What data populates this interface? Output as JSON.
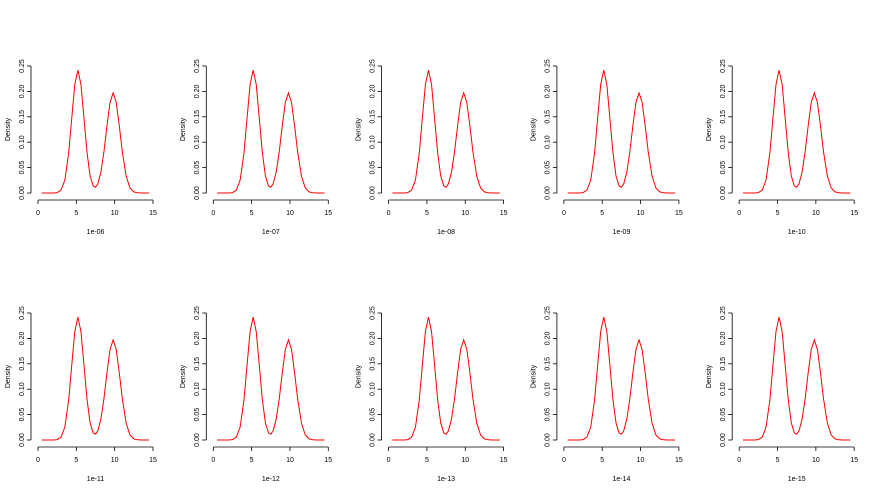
{
  "chart_data": [
    {
      "type": "line",
      "xlabel": "1e-06",
      "ylabel": "Density",
      "color": "#ff0000",
      "xlim": [
        0,
        15
      ],
      "ylim": [
        0,
        0.25
      ],
      "xticks": [
        0,
        5,
        10,
        15
      ],
      "yticks": [
        {
          "value": 0,
          "label": "0.00"
        },
        0.05,
        {
          "value": 0.1,
          "label": "0.10"
        },
        0.15,
        {
          "value": 0.2,
          "label": "0.20"
        },
        0.25
      ],
      "x": [
        0.5,
        1,
        1.5,
        2,
        2.5,
        3,
        3.5,
        4,
        4.4,
        4.8,
        5.2,
        5.6,
        6,
        6.4,
        6.8,
        7.2,
        7.5,
        7.8,
        8.2,
        8.6,
        9,
        9.4,
        9.8,
        10.2,
        10.6,
        11,
        11.5,
        12,
        12.5,
        13,
        13.5,
        14,
        14.5
      ],
      "values": [
        0,
        0,
        0,
        0.0001,
        0.0008,
        0.0055,
        0.0253,
        0.0786,
        0.1468,
        0.2136,
        0.242,
        0.2136,
        0.1468,
        0.0788,
        0.0335,
        0.0137,
        0.0114,
        0.0179,
        0.0408,
        0.081,
        0.1327,
        0.1785,
        0.197,
        0.1785,
        0.1327,
        0.081,
        0.0331,
        0.0099,
        0.0022,
        0.0004,
        0,
        0,
        0
      ]
    },
    {
      "type": "line",
      "xlabel": "1e-07",
      "ylabel": "Density",
      "color": "#ff0000",
      "xlim": [
        0,
        15
      ],
      "ylim": [
        0,
        0.25
      ],
      "xticks": [
        0,
        5,
        10,
        15
      ],
      "yticks": [
        {
          "value": 0,
          "label": "0.00"
        },
        0.05,
        {
          "value": 0.1,
          "label": "0.10"
        },
        0.15,
        {
          "value": 0.2,
          "label": "0.20"
        },
        0.25
      ],
      "x": [
        0.5,
        1,
        1.5,
        2,
        2.5,
        3,
        3.5,
        4,
        4.4,
        4.8,
        5.2,
        5.6,
        6,
        6.4,
        6.8,
        7.2,
        7.5,
        7.8,
        8.2,
        8.6,
        9,
        9.4,
        9.8,
        10.2,
        10.6,
        11,
        11.5,
        12,
        12.5,
        13,
        13.5,
        14,
        14.5
      ],
      "values": [
        0,
        0,
        0,
        0.0001,
        0.0008,
        0.0055,
        0.0253,
        0.0786,
        0.1468,
        0.2136,
        0.242,
        0.2136,
        0.1468,
        0.0788,
        0.0335,
        0.0137,
        0.0114,
        0.0179,
        0.0408,
        0.081,
        0.1327,
        0.1785,
        0.197,
        0.1785,
        0.1327,
        0.081,
        0.0331,
        0.0099,
        0.0022,
        0.0004,
        0,
        0,
        0
      ]
    },
    {
      "type": "line",
      "xlabel": "1e-08",
      "ylabel": "Density",
      "color": "#ff0000",
      "xlim": [
        0,
        15
      ],
      "ylim": [
        0,
        0.25
      ],
      "xticks": [
        0,
        5,
        10,
        15
      ],
      "yticks": [
        {
          "value": 0,
          "label": "0.00"
        },
        0.05,
        {
          "value": 0.1,
          "label": "0.10"
        },
        0.15,
        {
          "value": 0.2,
          "label": "0.20"
        },
        0.25
      ],
      "x": [
        0.5,
        1,
        1.5,
        2,
        2.5,
        3,
        3.5,
        4,
        4.4,
        4.8,
        5.2,
        5.6,
        6,
        6.4,
        6.8,
        7.2,
        7.5,
        7.8,
        8.2,
        8.6,
        9,
        9.4,
        9.8,
        10.2,
        10.6,
        11,
        11.5,
        12,
        12.5,
        13,
        13.5,
        14,
        14.5
      ],
      "values": [
        0,
        0,
        0,
        0.0001,
        0.0008,
        0.0055,
        0.0253,
        0.0786,
        0.1468,
        0.2136,
        0.242,
        0.2136,
        0.1468,
        0.0788,
        0.0335,
        0.0137,
        0.0114,
        0.0179,
        0.0408,
        0.081,
        0.1327,
        0.1785,
        0.197,
        0.1785,
        0.1327,
        0.081,
        0.0331,
        0.0099,
        0.0022,
        0.0004,
        0,
        0,
        0
      ]
    },
    {
      "type": "line",
      "xlabel": "1e-09",
      "ylabel": "Density",
      "color": "#ff0000",
      "xlim": [
        0,
        15
      ],
      "ylim": [
        0,
        0.25
      ],
      "xticks": [
        0,
        5,
        10,
        15
      ],
      "yticks": [
        {
          "value": 0,
          "label": "0.00"
        },
        0.05,
        {
          "value": 0.1,
          "label": "0.10"
        },
        0.15,
        {
          "value": 0.2,
          "label": "0.20"
        },
        0.25
      ],
      "x": [
        0.5,
        1,
        1.5,
        2,
        2.5,
        3,
        3.5,
        4,
        4.4,
        4.8,
        5.2,
        5.6,
        6,
        6.4,
        6.8,
        7.2,
        7.5,
        7.8,
        8.2,
        8.6,
        9,
        9.4,
        9.8,
        10.2,
        10.6,
        11,
        11.5,
        12,
        12.5,
        13,
        13.5,
        14,
        14.5
      ],
      "values": [
        0,
        0,
        0,
        0.0001,
        0.0008,
        0.0055,
        0.0253,
        0.0786,
        0.1468,
        0.2136,
        0.242,
        0.2136,
        0.1468,
        0.0788,
        0.0335,
        0.0137,
        0.0114,
        0.0179,
        0.0408,
        0.081,
        0.1327,
        0.1785,
        0.197,
        0.1785,
        0.1327,
        0.081,
        0.0331,
        0.0099,
        0.0022,
        0.0004,
        0,
        0,
        0
      ]
    },
    {
      "type": "line",
      "xlabel": "1e-10",
      "ylabel": "Density",
      "color": "#ff0000",
      "xlim": [
        0,
        15
      ],
      "ylim": [
        0,
        0.25
      ],
      "xticks": [
        0,
        5,
        10,
        15
      ],
      "yticks": [
        {
          "value": 0,
          "label": "0.00"
        },
        0.05,
        {
          "value": 0.1,
          "label": "0.10"
        },
        0.15,
        {
          "value": 0.2,
          "label": "0.20"
        },
        0.25
      ],
      "x": [
        0.5,
        1,
        1.5,
        2,
        2.5,
        3,
        3.5,
        4,
        4.4,
        4.8,
        5.2,
        5.6,
        6,
        6.4,
        6.8,
        7.2,
        7.5,
        7.8,
        8.2,
        8.6,
        9,
        9.4,
        9.8,
        10.2,
        10.6,
        11,
        11.5,
        12,
        12.5,
        13,
        13.5,
        14,
        14.5
      ],
      "values": [
        0,
        0,
        0,
        0.0001,
        0.0008,
        0.0055,
        0.0253,
        0.0786,
        0.1468,
        0.2136,
        0.242,
        0.2136,
        0.1468,
        0.0788,
        0.0335,
        0.0137,
        0.0114,
        0.0179,
        0.0408,
        0.081,
        0.1327,
        0.1785,
        0.197,
        0.1785,
        0.1327,
        0.081,
        0.0331,
        0.0099,
        0.0022,
        0.0004,
        0,
        0,
        0
      ]
    },
    {
      "type": "line",
      "xlabel": "1e-11",
      "ylabel": "Density",
      "color": "#ff0000",
      "xlim": [
        0,
        15
      ],
      "ylim": [
        0,
        0.25
      ],
      "xticks": [
        0,
        5,
        10,
        15
      ],
      "yticks": [
        {
          "value": 0,
          "label": "0.00"
        },
        0.05,
        {
          "value": 0.1,
          "label": "0.10"
        },
        0.15,
        {
          "value": 0.2,
          "label": "0.20"
        },
        0.25
      ],
      "x": [
        0.5,
        1,
        1.5,
        2,
        2.5,
        3,
        3.5,
        4,
        4.4,
        4.8,
        5.2,
        5.6,
        6,
        6.4,
        6.8,
        7.2,
        7.5,
        7.8,
        8.2,
        8.6,
        9,
        9.4,
        9.8,
        10.2,
        10.6,
        11,
        11.5,
        12,
        12.5,
        13,
        13.5,
        14,
        14.5
      ],
      "values": [
        0,
        0,
        0,
        0.0001,
        0.0008,
        0.0055,
        0.0253,
        0.0786,
        0.1468,
        0.2136,
        0.242,
        0.2136,
        0.1468,
        0.0788,
        0.0335,
        0.0137,
        0.0114,
        0.0179,
        0.0408,
        0.081,
        0.1327,
        0.1785,
        0.197,
        0.1785,
        0.1327,
        0.081,
        0.0331,
        0.0099,
        0.0022,
        0.0004,
        0,
        0,
        0
      ]
    },
    {
      "type": "line",
      "xlabel": "1e-12",
      "ylabel": "Density",
      "color": "#ff0000",
      "xlim": [
        0,
        15
      ],
      "ylim": [
        0,
        0.25
      ],
      "xticks": [
        0,
        5,
        10,
        15
      ],
      "yticks": [
        {
          "value": 0,
          "label": "0.00"
        },
        0.05,
        {
          "value": 0.1,
          "label": "0.10"
        },
        0.15,
        {
          "value": 0.2,
          "label": "0.20"
        },
        0.25
      ],
      "x": [
        0.5,
        1,
        1.5,
        2,
        2.5,
        3,
        3.5,
        4,
        4.4,
        4.8,
        5.2,
        5.6,
        6,
        6.4,
        6.8,
        7.2,
        7.5,
        7.8,
        8.2,
        8.6,
        9,
        9.4,
        9.8,
        10.2,
        10.6,
        11,
        11.5,
        12,
        12.5,
        13,
        13.5,
        14,
        14.5
      ],
      "values": [
        0,
        0,
        0,
        0.0001,
        0.0008,
        0.0055,
        0.0253,
        0.0786,
        0.1468,
        0.2136,
        0.242,
        0.2136,
        0.1468,
        0.0788,
        0.0335,
        0.0137,
        0.0114,
        0.0179,
        0.0408,
        0.081,
        0.1327,
        0.1785,
        0.197,
        0.1785,
        0.1327,
        0.081,
        0.0331,
        0.0099,
        0.0022,
        0.0004,
        0,
        0,
        0
      ]
    },
    {
      "type": "line",
      "xlabel": "1e-13",
      "ylabel": "Density",
      "color": "#ff0000",
      "xlim": [
        0,
        15
      ],
      "ylim": [
        0,
        0.25
      ],
      "xticks": [
        0,
        5,
        10,
        15
      ],
      "yticks": [
        {
          "value": 0,
          "label": "0.00"
        },
        0.05,
        {
          "value": 0.1,
          "label": "0.10"
        },
        0.15,
        {
          "value": 0.2,
          "label": "0.20"
        },
        0.25
      ],
      "x": [
        0.5,
        1,
        1.5,
        2,
        2.5,
        3,
        3.5,
        4,
        4.4,
        4.8,
        5.2,
        5.6,
        6,
        6.4,
        6.8,
        7.2,
        7.5,
        7.8,
        8.2,
        8.6,
        9,
        9.4,
        9.8,
        10.2,
        10.6,
        11,
        11.5,
        12,
        12.5,
        13,
        13.5,
        14,
        14.5
      ],
      "values": [
        0,
        0,
        0,
        0.0001,
        0.0008,
        0.0055,
        0.0253,
        0.0786,
        0.1468,
        0.2136,
        0.242,
        0.2136,
        0.1468,
        0.0788,
        0.0335,
        0.0137,
        0.0114,
        0.0179,
        0.0408,
        0.081,
        0.1327,
        0.1785,
        0.197,
        0.1785,
        0.1327,
        0.081,
        0.0331,
        0.0099,
        0.0022,
        0.0004,
        0,
        0,
        0
      ]
    },
    {
      "type": "line",
      "xlabel": "1e-14",
      "ylabel": "Density",
      "color": "#ff0000",
      "xlim": [
        0,
        15
      ],
      "ylim": [
        0,
        0.25
      ],
      "xticks": [
        0,
        5,
        10,
        15
      ],
      "yticks": [
        {
          "value": 0,
          "label": "0.00"
        },
        0.05,
        {
          "value": 0.1,
          "label": "0.10"
        },
        0.15,
        {
          "value": 0.2,
          "label": "0.20"
        },
        0.25
      ],
      "x": [
        0.5,
        1,
        1.5,
        2,
        2.5,
        3,
        3.5,
        4,
        4.4,
        4.8,
        5.2,
        5.6,
        6,
        6.4,
        6.8,
        7.2,
        7.5,
        7.8,
        8.2,
        8.6,
        9,
        9.4,
        9.8,
        10.2,
        10.6,
        11,
        11.5,
        12,
        12.5,
        13,
        13.5,
        14,
        14.5
      ],
      "values": [
        0,
        0,
        0,
        0.0001,
        0.0008,
        0.0055,
        0.0253,
        0.0786,
        0.1468,
        0.2136,
        0.242,
        0.2136,
        0.1468,
        0.0788,
        0.0335,
        0.0137,
        0.0114,
        0.0179,
        0.0408,
        0.081,
        0.1327,
        0.1785,
        0.197,
        0.1785,
        0.1327,
        0.081,
        0.0331,
        0.0099,
        0.0022,
        0.0004,
        0,
        0,
        0
      ]
    },
    {
      "type": "line",
      "xlabel": "1e-15",
      "ylabel": "Density",
      "color": "#ff0000",
      "xlim": [
        0,
        15
      ],
      "ylim": [
        0,
        0.25
      ],
      "xticks": [
        0,
        5,
        10,
        15
      ],
      "yticks": [
        {
          "value": 0,
          "label": "0.00"
        },
        0.05,
        {
          "value": 0.1,
          "label": "0.10"
        },
        0.15,
        {
          "value": 0.2,
          "label": "0.20"
        },
        0.25
      ],
      "x": [
        0.5,
        1,
        1.5,
        2,
        2.5,
        3,
        3.5,
        4,
        4.4,
        4.8,
        5.2,
        5.6,
        6,
        6.4,
        6.8,
        7.2,
        7.5,
        7.8,
        8.2,
        8.6,
        9,
        9.4,
        9.8,
        10.2,
        10.6,
        11,
        11.5,
        12,
        12.5,
        13,
        13.5,
        14,
        14.5
      ],
      "values": [
        0,
        0,
        0,
        0.0001,
        0.0008,
        0.0055,
        0.0253,
        0.0786,
        0.1468,
        0.2136,
        0.242,
        0.2136,
        0.1468,
        0.0788,
        0.0335,
        0.0137,
        0.0114,
        0.0179,
        0.0408,
        0.081,
        0.1327,
        0.1785,
        0.197,
        0.1785,
        0.1327,
        0.081,
        0.0331,
        0.0099,
        0.0022,
        0.0004,
        0,
        0,
        0
      ]
    }
  ]
}
